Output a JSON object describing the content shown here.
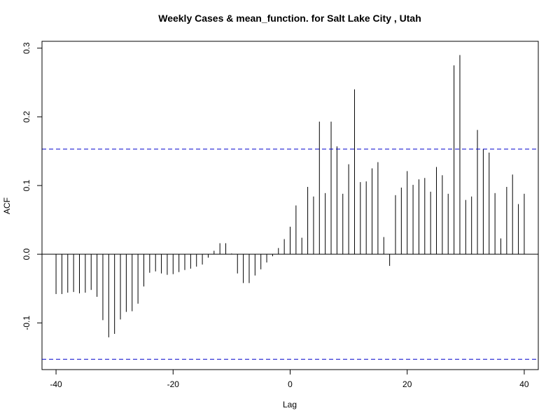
{
  "chart_data": {
    "type": "bar",
    "title": "Weekly Cases & mean_function. for Salt Lake City , Utah",
    "xlabel": "Lag",
    "ylabel": "ACF",
    "xlim": [
      -42.4,
      42.4
    ],
    "ylim": [
      -0.168,
      0.31
    ],
    "x_ticks": [
      -40,
      -20,
      0,
      20,
      40
    ],
    "x_tick_labels": [
      "-40",
      "-20",
      "0",
      "20",
      "40"
    ],
    "y_ticks": [
      -0.1,
      0.0,
      0.1,
      0.2,
      0.3
    ],
    "y_tick_labels": [
      "-0.1",
      "0.0",
      "0.1",
      "0.2",
      "0.3"
    ],
    "zero_line": 0,
    "confidence_bounds": [
      0.153,
      -0.153
    ],
    "confidence_color": "#0000cc",
    "bar_color": "#000000",
    "grid": false,
    "x": [
      -40,
      -39,
      -38,
      -37,
      -36,
      -35,
      -34,
      -33,
      -32,
      -31,
      -30,
      -29,
      -28,
      -27,
      -26,
      -25,
      -24,
      -23,
      -22,
      -21,
      -20,
      -19,
      -18,
      -17,
      -16,
      -15,
      -14,
      -13,
      -12,
      -11,
      -10,
      -9,
      -8,
      -7,
      -6,
      -5,
      -4,
      -3,
      -2,
      -1,
      0,
      1,
      2,
      3,
      4,
      5,
      6,
      7,
      8,
      9,
      10,
      11,
      12,
      13,
      14,
      15,
      16,
      17,
      18,
      19,
      20,
      21,
      22,
      23,
      24,
      25,
      26,
      27,
      28,
      29,
      30,
      31,
      32,
      33,
      34,
      35,
      36,
      37,
      38,
      39,
      40
    ],
    "values": [
      -0.058,
      -0.058,
      -0.056,
      -0.055,
      -0.057,
      -0.056,
      -0.052,
      -0.062,
      -0.096,
      -0.121,
      -0.116,
      -0.095,
      -0.084,
      -0.083,
      -0.072,
      -0.047,
      -0.027,
      -0.025,
      -0.028,
      -0.03,
      -0.029,
      -0.026,
      -0.023,
      -0.021,
      -0.018,
      -0.015,
      -0.005,
      0.005,
      0.016,
      0.016,
      0.001,
      -0.028,
      -0.042,
      -0.042,
      -0.031,
      -0.022,
      -0.012,
      -0.003,
      0.009,
      0.022,
      0.04,
      0.071,
      0.024,
      0.098,
      0.084,
      0.193,
      0.089,
      0.193,
      0.157,
      0.088,
      0.131,
      0.24,
      0.105,
      0.106,
      0.125,
      0.134,
      0.025,
      -0.017,
      0.086,
      0.097,
      0.121,
      0.101,
      0.109,
      0.111,
      0.091,
      0.127,
      0.115,
      0.088,
      0.275,
      0.29,
      0.079,
      0.084,
      0.181,
      0.153,
      0.148,
      0.089,
      0.023,
      0.098,
      0.116,
      0.073,
      0.088
    ]
  }
}
